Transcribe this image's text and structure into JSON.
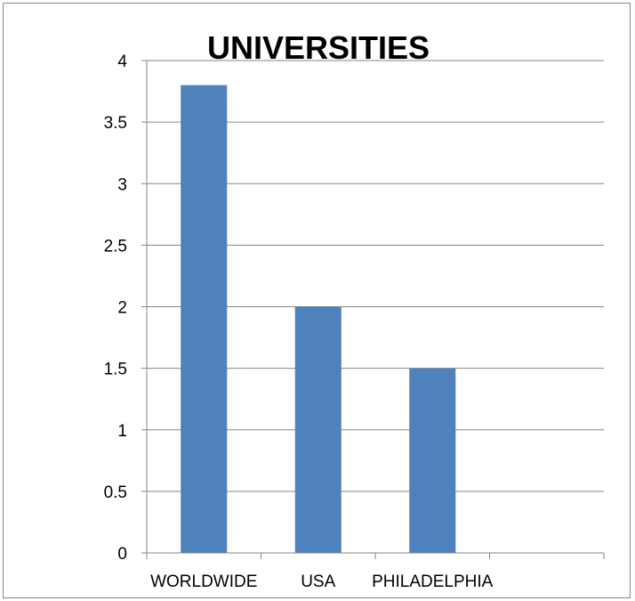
{
  "chart_data": {
    "type": "bar",
    "title": "UNIVERSITIES",
    "categories": [
      "WORLDWIDE",
      "USA",
      "PHILADELPHIA",
      ""
    ],
    "values": [
      3.8,
      2,
      1.5,
      null
    ],
    "y_ticks": [
      "0",
      "0.5",
      "1",
      "1.5",
      "2",
      "2.5",
      "3",
      "3.5",
      "4"
    ],
    "ylim": [
      0,
      4
    ],
    "xlabel": "",
    "ylabel": "",
    "grid": true,
    "legend": "none",
    "bar_color": "#4F81BD",
    "grid_color": "#868686"
  }
}
